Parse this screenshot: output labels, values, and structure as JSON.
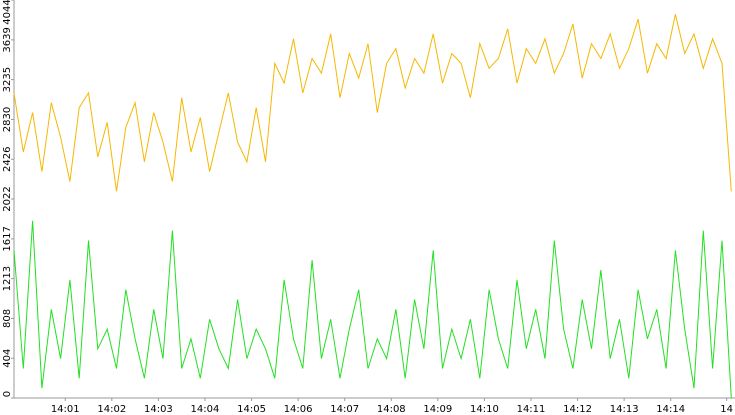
{
  "chart_data": {
    "type": "line",
    "x": [
      -0.1,
      0.1,
      0.3,
      0.5,
      0.7,
      0.9,
      1.1,
      1.3,
      1.5,
      1.7,
      1.9,
      2.1,
      2.3,
      2.5,
      2.7,
      2.9,
      3.1,
      3.3,
      3.5,
      3.7,
      3.9,
      4.1,
      4.3,
      4.5,
      4.7,
      4.9,
      5.1,
      5.3,
      5.5,
      5.7,
      5.9,
      6.1,
      6.3,
      6.5,
      6.7,
      6.9,
      7.1,
      7.3,
      7.5,
      7.7,
      7.9,
      8.1,
      8.3,
      8.5,
      8.7,
      8.9,
      9.1,
      9.3,
      9.5,
      9.7,
      9.9,
      10.1,
      10.3,
      10.5,
      10.7,
      10.9,
      11.1,
      11.3,
      11.5,
      11.7,
      11.9,
      12.1,
      12.3,
      12.5,
      12.7,
      12.9,
      13.1,
      13.3,
      13.5,
      13.7,
      13.9,
      14.1,
      14.3,
      14.5,
      14.7,
      14.9,
      15.1,
      15.3
    ],
    "series": [
      {
        "color": "#f5b800",
        "values": [
          3100,
          2500,
          2900,
          2300,
          3000,
          2650,
          2200,
          2950,
          3100,
          2450,
          2800,
          2100,
          2750,
          3000,
          2400,
          2900,
          2600,
          2200,
          3050,
          2500,
          2850,
          2300,
          2700,
          3100,
          2600,
          2400,
          2950,
          2400,
          3400,
          3200,
          3650,
          3100,
          3450,
          3300,
          3700,
          3050,
          3500,
          3250,
          3600,
          2900,
          3400,
          3550,
          3150,
          3450,
          3300,
          3700,
          3200,
          3500,
          3400,
          3050,
          3600,
          3350,
          3450,
          3750,
          3200,
          3550,
          3400,
          3650,
          3300,
          3500,
          3800,
          3250,
          3600,
          3450,
          3700,
          3350,
          3550,
          3850,
          3300,
          3600,
          3450,
          3900,
          3500,
          3700,
          3350,
          3650,
          3400,
          2100
        ]
      },
      {
        "color": "#22e022",
        "values": [
          1500,
          300,
          1800,
          100,
          900,
          400,
          1200,
          200,
          1600,
          500,
          700,
          300,
          1100,
          600,
          200,
          900,
          400,
          1700,
          300,
          600,
          200,
          800,
          500,
          300,
          1000,
          400,
          700,
          500,
          200,
          1200,
          600,
          300,
          1400,
          400,
          800,
          200,
          700,
          1100,
          300,
          600,
          400,
          900,
          200,
          1000,
          500,
          1500,
          300,
          700,
          400,
          800,
          200,
          1100,
          600,
          300,
          1200,
          500,
          900,
          400,
          1600,
          700,
          300,
          1000,
          500,
          1300,
          400,
          800,
          200,
          1100,
          600,
          900,
          300,
          1500,
          700,
          100,
          1700,
          300,
          1600,
          0
        ]
      }
    ],
    "xlim": [
      -0.1,
      15.38
    ],
    "xticks": [
      {
        "value": 1,
        "label": "14:01"
      },
      {
        "value": 2,
        "label": "14:02"
      },
      {
        "value": 3,
        "label": "14:03"
      },
      {
        "value": 4,
        "label": "14:04"
      },
      {
        "value": 5,
        "label": "14:05"
      },
      {
        "value": 6,
        "label": "14:06"
      },
      {
        "value": 7,
        "label": "14:07"
      },
      {
        "value": 8,
        "label": "14:08"
      },
      {
        "value": 9,
        "label": "14:09"
      },
      {
        "value": 10,
        "label": "14:10"
      },
      {
        "value": 11,
        "label": "14:11"
      },
      {
        "value": 12,
        "label": "14:12"
      },
      {
        "value": 13,
        "label": "14:13"
      },
      {
        "value": 14,
        "label": "14:14"
      },
      {
        "value": 15.2,
        "label": "14"
      }
    ],
    "ylim": [
      0,
      4044
    ],
    "yticks": [
      0,
      404,
      808,
      1213,
      1617,
      2022,
      2426,
      2830,
      3235,
      3639,
      4044
    ]
  }
}
